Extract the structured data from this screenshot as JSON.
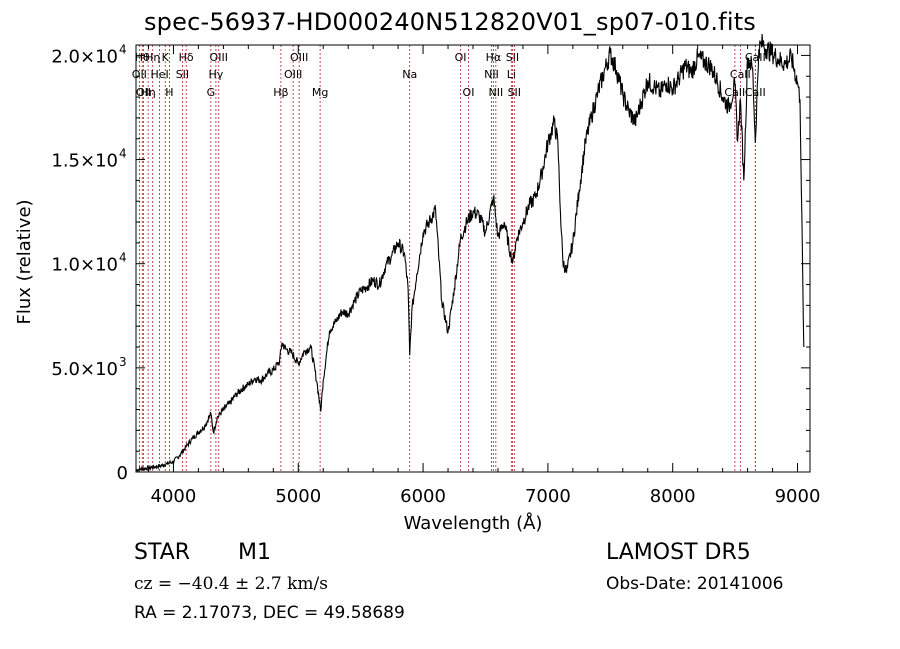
{
  "chart_data": {
    "type": "line",
    "title": "spec-56937-HD000240N512820V01_sp07-010.fits",
    "xlabel": "Wavelength (Å)",
    "ylabel": "Flux (relative)",
    "xlim": [
      3700,
      9100
    ],
    "ylim": [
      0,
      20500
    ],
    "x_ticks": [
      4000,
      5000,
      6000,
      7000,
      8000,
      9000
    ],
    "x_tick_labels": [
      "4000",
      "5000",
      "6000",
      "7000",
      "8000",
      "9000"
    ],
    "y_ticks": [
      0,
      5000,
      10000,
      15000,
      20000
    ],
    "y_tick_labels": [
      {
        "mantissa": "0",
        "exp": ""
      },
      {
        "mantissa": "5.0×10",
        "exp": "3"
      },
      {
        "mantissa": "1.0×10",
        "exp": "4"
      },
      {
        "mantissa": "1.5×10",
        "exp": "4"
      },
      {
        "mantissa": "2.0×10",
        "exp": "4"
      }
    ],
    "grid": false,
    "line_color": "#000000",
    "marker_color": "#b22222",
    "series": [
      {
        "x": [
          3700,
          3750,
          3800,
          3850,
          3900,
          3950,
          4000,
          4050,
          4100,
          4150,
          4200,
          4250,
          4300,
          4320,
          4350,
          4400,
          4450,
          4500,
          4550,
          4600,
          4650,
          4700,
          4750,
          4800,
          4850,
          4870,
          4900,
          4950,
          5000,
          5050,
          5100,
          5150,
          5180,
          5200,
          5250,
          5300,
          5350,
          5400,
          5450,
          5500,
          5550,
          5600,
          5650,
          5700,
          5750,
          5800,
          5850,
          5880,
          5893,
          5910,
          5950,
          6000,
          6050,
          6100,
          6150,
          6200,
          6250,
          6300,
          6350,
          6400,
          6450,
          6500,
          6550,
          6563,
          6600,
          6650,
          6700,
          6720,
          6750,
          6800,
          6850,
          6900,
          6950,
          7000,
          7050,
          7080,
          7100,
          7120,
          7150,
          7200,
          7250,
          7300,
          7350,
          7400,
          7450,
          7500,
          7550,
          7600,
          7650,
          7700,
          7750,
          7800,
          7850,
          7900,
          7950,
          8000,
          8050,
          8100,
          8150,
          8200,
          8250,
          8300,
          8350,
          8400,
          8450,
          8498,
          8520,
          8542,
          8570,
          8600,
          8640,
          8662,
          8690,
          8720,
          8750,
          8800,
          8850,
          8900,
          8950,
          9000,
          9020,
          9050
        ],
        "y": [
          100,
          150,
          200,
          250,
          300,
          400,
          500,
          800,
          1200,
          1600,
          1900,
          2200,
          2800,
          1900,
          2600,
          3000,
          3300,
          3700,
          4000,
          4200,
          4500,
          4400,
          4700,
          4900,
          5300,
          6200,
          5900,
          5700,
          5200,
          5800,
          6000,
          4300,
          2900,
          4400,
          6800,
          7200,
          7700,
          7600,
          8200,
          8700,
          8900,
          9200,
          9000,
          9900,
          10400,
          11000,
          10500,
          8800,
          5600,
          7700,
          9500,
          11500,
          12000,
          12600,
          8200,
          6700,
          8800,
          11200,
          12000,
          12500,
          12300,
          11500,
          12800,
          13200,
          11300,
          12000,
          10500,
          10100,
          11200,
          12000,
          12800,
          13200,
          14300,
          15800,
          16800,
          15800,
          12500,
          10100,
          9600,
          11000,
          13500,
          15800,
          17100,
          18200,
          19200,
          20100,
          19300,
          18100,
          17300,
          16800,
          17800,
          18800,
          18500,
          18200,
          18700,
          18400,
          18900,
          19500,
          19200,
          19900,
          19700,
          19500,
          18900,
          18000,
          17500,
          18600,
          15900,
          17900,
          14000,
          19900,
          19400,
          15800,
          20300,
          20600,
          20300,
          20100,
          19800,
          19600,
          19900,
          18700,
          17900,
          6000
        ]
      }
    ],
    "line_markers": [
      {
        "x": 3750,
        "label": "Hθ",
        "row": 0
      },
      {
        "x": 3727,
        "label": "OII",
        "row": 1
      },
      {
        "x": 3760,
        "label": "OII",
        "row": 2
      },
      {
        "x": 3797,
        "label": "Hη",
        "row": 2
      },
      {
        "x": 3834,
        "label": "Hη",
        "row": 0
      },
      {
        "x": 3889,
        "label": "HeI",
        "row": 1
      },
      {
        "x": 3934,
        "label": "K",
        "row": 0
      },
      {
        "x": 3968,
        "label": "H",
        "row": 2
      },
      {
        "x": 4072,
        "label": "SII",
        "row": 1
      },
      {
        "x": 4102,
        "label": "Hδ",
        "row": 0
      },
      {
        "x": 4300,
        "label": "G",
        "row": 2
      },
      {
        "x": 4340,
        "label": "Hγ",
        "row": 1
      },
      {
        "x": 4363,
        "label": "OIII",
        "row": 0
      },
      {
        "x": 4861,
        "label": "Hβ",
        "row": 2
      },
      {
        "x": 4959,
        "label": "OIII",
        "row": 1
      },
      {
        "x": 5007,
        "label": "OIII",
        "row": 0
      },
      {
        "x": 5175,
        "label": "Mg",
        "row": 2
      },
      {
        "x": 5893,
        "label": "Na",
        "row": 1
      },
      {
        "x": 6300,
        "label": "OI",
        "row": 0
      },
      {
        "x": 6364,
        "label": "OI",
        "row": 2
      },
      {
        "x": 6548,
        "label": "NII",
        "row": 1
      },
      {
        "x": 6563,
        "label": "Hα",
        "row": 0
      },
      {
        "x": 6583,
        "label": "NII",
        "row": 2
      },
      {
        "x": 6707,
        "label": "Li",
        "row": 1
      },
      {
        "x": 6716,
        "label": "SII",
        "row": 0
      },
      {
        "x": 6731,
        "label": "SII",
        "row": 2
      },
      {
        "x": 8498,
        "label": "CaII",
        "row": 2
      },
      {
        "x": 8542,
        "label": "CaII",
        "row": 1
      },
      {
        "x": 8662,
        "label": "CaII",
        "row": 0
      },
      {
        "x": 8662,
        "label": "CaII",
        "row": 2
      }
    ]
  },
  "info": {
    "object_class": "STAR",
    "object_subclass": "M1",
    "survey": "LAMOST  DR5",
    "cz": "cz = −40.4 ± 2.7 km/s",
    "obs_date": "Obs-Date: 20141006",
    "radec": "RA =    2.17073, DEC =  49.58689"
  }
}
